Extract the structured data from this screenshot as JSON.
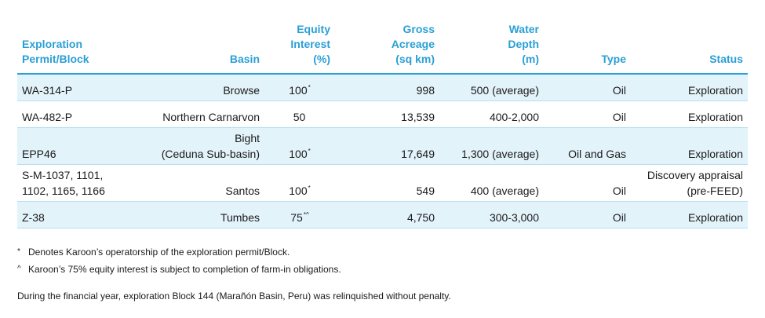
{
  "columns": [
    {
      "key": "permit",
      "label": "Exploration\nPermit/Block"
    },
    {
      "key": "basin",
      "label": "Basin"
    },
    {
      "key": "equity",
      "label": "Equity\nInterest\n(%)"
    },
    {
      "key": "acreage",
      "label": "Gross\nAcreage\n(sq km)"
    },
    {
      "key": "depth",
      "label": "Water\nDepth\n(m)"
    },
    {
      "key": "type",
      "label": "Type"
    },
    {
      "key": "status",
      "label": "Status"
    }
  ],
  "rows": [
    {
      "permit": "WA-314-P",
      "basin": "Browse",
      "equity": "100",
      "equity_mark": "*",
      "acreage": "998",
      "depth": "500 (average)",
      "type": "Oil",
      "status": "Exploration"
    },
    {
      "permit": "WA-482-P",
      "basin": "Northern Carnarvon",
      "equity": "50",
      "equity_mark": "",
      "acreage": "13,539",
      "depth": "400-2,000",
      "type": "Oil",
      "status": "Exploration"
    },
    {
      "permit": "EPP46",
      "basin": "Bight\n(Ceduna Sub-basin)",
      "equity": "100",
      "equity_mark": "*",
      "acreage": "17,649",
      "depth": "1,300 (average)",
      "type": "Oil and Gas",
      "status": "Exploration"
    },
    {
      "permit": "S-M-1037, 1101,\n1102, 1165, 1166",
      "basin": "Santos",
      "equity": "100",
      "equity_mark": "*",
      "acreage": "549",
      "depth": "400 (average)",
      "type": "Oil",
      "status": "Discovery appraisal\n(pre-FEED)"
    },
    {
      "permit": "Z-38",
      "basin": "Tumbes",
      "equity": "75",
      "equity_mark": "*^",
      "acreage": "4,750",
      "depth": "300-3,000",
      "type": "Oil",
      "status": "Exploration"
    }
  ],
  "notes": [
    {
      "mark": "*",
      "text": "Denotes Karoon’s operatorship of the exploration permit/Block."
    },
    {
      "mark": "^",
      "text": "Karoon’s 75% equity interest is subject to completion of farm-in obligations."
    }
  ],
  "footer": "During the financial year, exploration Block 144 (Marañón Basin, Peru) was relinquished without penalty.",
  "colors": {
    "header": "#2a9fd6",
    "shade": "#e3f3fa"
  }
}
